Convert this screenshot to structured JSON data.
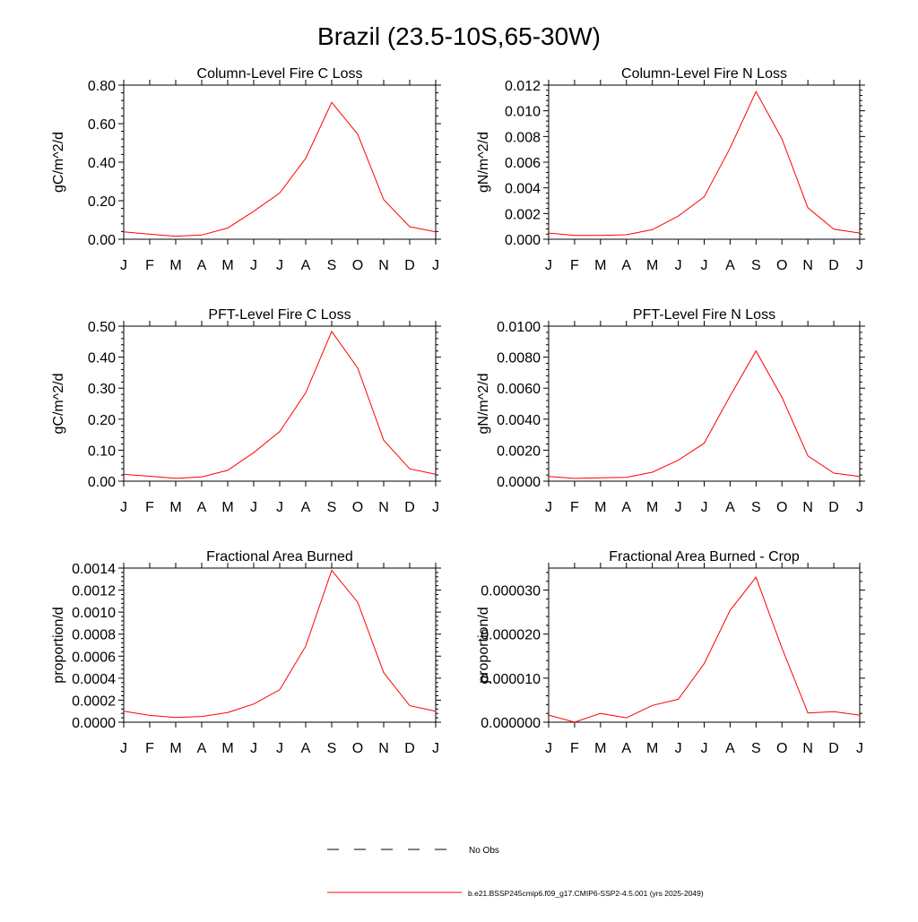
{
  "page": {
    "title": "Brazil (23.5-10S,65-30W)"
  },
  "chart_data": [
    {
      "type": "line",
      "title": "Column-Level Fire C Loss",
      "ylabel": "gC/m^2/d",
      "categories": [
        "J",
        "F",
        "M",
        "A",
        "M",
        "J",
        "J",
        "A",
        "S",
        "O",
        "N",
        "D",
        "J"
      ],
      "ylim": [
        0,
        0.8
      ],
      "yticks": [
        "0.00",
        "0.20",
        "0.40",
        "0.60",
        "0.80"
      ],
      "series": [
        {
          "values": [
            0.038,
            0.026,
            0.016,
            0.022,
            0.058,
            0.145,
            0.24,
            0.42,
            0.71,
            0.545,
            0.205,
            0.065,
            0.038
          ]
        }
      ]
    },
    {
      "type": "line",
      "title": "Column-Level Fire N Loss",
      "ylabel": "gN/m^2/d",
      "categories": [
        "J",
        "F",
        "M",
        "A",
        "M",
        "J",
        "J",
        "A",
        "S",
        "O",
        "N",
        "D",
        "J"
      ],
      "ylim": [
        0,
        0.012
      ],
      "yticks": [
        "0.000",
        "0.002",
        "0.004",
        "0.006",
        "0.008",
        "0.010",
        "0.012"
      ],
      "series": [
        {
          "values": [
            0.00048,
            0.0003,
            0.0003,
            0.00035,
            0.00075,
            0.0018,
            0.0033,
            0.0071,
            0.0115,
            0.0078,
            0.00245,
            0.00078,
            0.00048
          ]
        }
      ]
    },
    {
      "type": "line",
      "title": "PFT-Level Fire C Loss",
      "ylabel": "gC/m^2/d",
      "categories": [
        "J",
        "F",
        "M",
        "A",
        "M",
        "J",
        "J",
        "A",
        "S",
        "O",
        "N",
        "D",
        "J"
      ],
      "ylim": [
        0,
        0.5
      ],
      "yticks": [
        "0.00",
        "0.10",
        "0.20",
        "0.30",
        "0.40",
        "0.50"
      ],
      "series": [
        {
          "values": [
            0.022,
            0.016,
            0.009,
            0.014,
            0.035,
            0.092,
            0.16,
            0.285,
            0.483,
            0.365,
            0.132,
            0.04,
            0.022
          ]
        }
      ]
    },
    {
      "type": "line",
      "title": "PFT-Level Fire N Loss",
      "ylabel": "gN/m^2/d",
      "categories": [
        "J",
        "F",
        "M",
        "A",
        "M",
        "J",
        "J",
        "A",
        "S",
        "O",
        "N",
        "D",
        "J"
      ],
      "ylim": [
        0,
        0.01
      ],
      "yticks": [
        "0.0000",
        "0.0020",
        "0.0040",
        "0.0060",
        "0.0080",
        "0.0100"
      ],
      "series": [
        {
          "values": [
            0.0003,
            0.00018,
            0.00022,
            0.00025,
            0.00058,
            0.00135,
            0.00245,
            0.0055,
            0.0084,
            0.0054,
            0.00163,
            0.00052,
            0.0003
          ]
        }
      ]
    },
    {
      "type": "line",
      "title": "Fractional Area Burned",
      "ylabel": "proportion/d",
      "categories": [
        "J",
        "F",
        "M",
        "A",
        "M",
        "J",
        "J",
        "A",
        "S",
        "O",
        "N",
        "D",
        "J"
      ],
      "ylim": [
        0,
        0.0014
      ],
      "yticks": [
        "0.0000",
        "0.0002",
        "0.0004",
        "0.0006",
        "0.0008",
        "0.0010",
        "0.0012",
        "0.0014"
      ],
      "series": [
        {
          "values": [
            0.0001,
            6.2e-05,
            4.2e-05,
            5.2e-05,
            8.8e-05,
            0.000165,
            0.000295,
            0.00069,
            0.00138,
            0.00109,
            0.00045,
            0.00015,
            0.0001
          ]
        }
      ]
    },
    {
      "type": "line",
      "title": "Fractional Area Burned - Crop",
      "ylabel": "proportion/d",
      "categories": [
        "J",
        "F",
        "M",
        "A",
        "M",
        "J",
        "J",
        "A",
        "S",
        "O",
        "N",
        "D",
        "J"
      ],
      "ylim": [
        0,
        3.5e-05
      ],
      "yticks": [
        "0.000000",
        "0.000010",
        "0.000020",
        "0.000030"
      ],
      "yticks_values": [
        0,
        1e-05,
        2e-05,
        3e-05
      ],
      "series": [
        {
          "values": [
            1.6e-06,
            0.0,
            2e-06,
            1e-06,
            3.8e-06,
            5.2e-06,
            1.33e-05,
            2.54e-05,
            3.29e-05,
            1.68e-05,
            2.1e-06,
            2.4e-06,
            1.6e-06
          ]
        }
      ]
    }
  ],
  "legend": {
    "items": [
      {
        "style": "dashed",
        "color": "#000000",
        "label": "No Obs"
      },
      {
        "style": "solid",
        "color": "#ff0000",
        "label": "b.e21.BSSP245cmip6.f09_g17.CMIP6-SSP2-4.5.001 (yrs 2025-2049)"
      }
    ]
  },
  "colors": {
    "series_line": "#ff0000",
    "axis": "#000000",
    "background": "#ffffff"
  }
}
